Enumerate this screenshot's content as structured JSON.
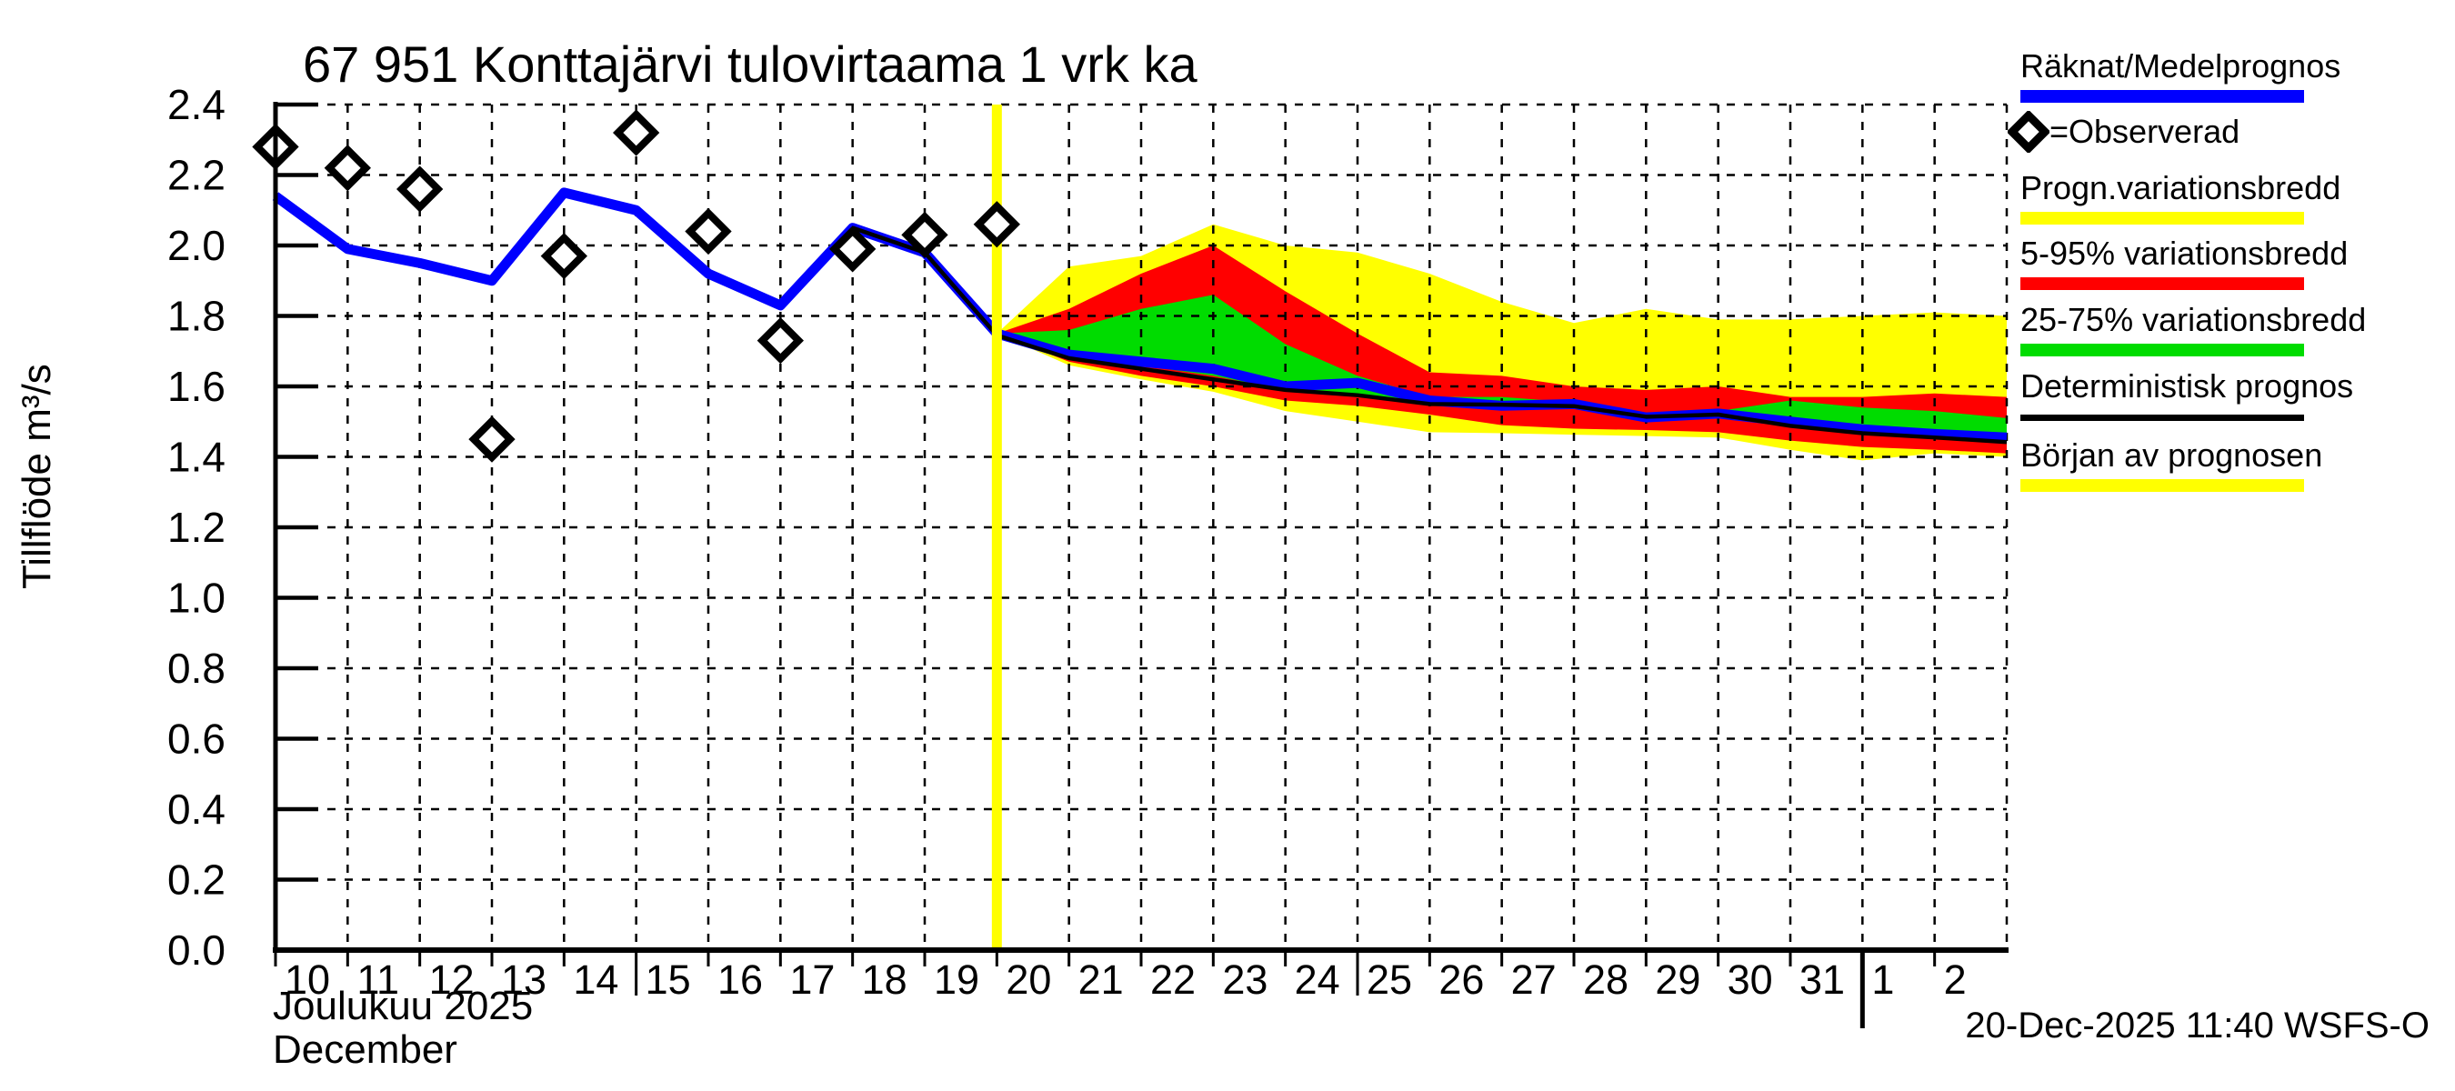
{
  "title": "67 951 Konttajärvi tulovirtaama 1 vrk ka",
  "y_axis": {
    "title": "Tillflöde m³/s",
    "tick_labels": [
      "2.4",
      "2.2",
      "2.0",
      "1.8",
      "1.6",
      "1.4",
      "1.2",
      "1.0",
      "0.8",
      "0.6",
      "0.4",
      "0.2",
      "0.0"
    ],
    "min": 0.0,
    "max": 2.4,
    "step": 0.2
  },
  "x_axis": {
    "month_finnish": "Joulukuu 2025",
    "month_english": "December",
    "labels": [
      {
        "day": 10,
        "text": "10",
        "tick": "normal"
      },
      {
        "day": 11,
        "text": "11",
        "tick": "normal"
      },
      {
        "day": 12,
        "text": "12",
        "tick": "normal"
      },
      {
        "day": 13,
        "text": "13",
        "tick": "normal"
      },
      {
        "day": 14,
        "text": "14",
        "tick": "normal"
      },
      {
        "day": 15,
        "text": "15",
        "tick": "medium"
      },
      {
        "day": 16,
        "text": "16",
        "tick": "normal"
      },
      {
        "day": 17,
        "text": "17",
        "tick": "normal"
      },
      {
        "day": 18,
        "text": "18",
        "tick": "normal"
      },
      {
        "day": 19,
        "text": "19",
        "tick": "normal"
      },
      {
        "day": 20,
        "text": "20",
        "tick": "normal"
      },
      {
        "day": 21,
        "text": "21",
        "tick": "normal"
      },
      {
        "day": 22,
        "text": "22",
        "tick": "normal"
      },
      {
        "day": 23,
        "text": "23",
        "tick": "normal"
      },
      {
        "day": 24,
        "text": "24",
        "tick": "normal"
      },
      {
        "day": 25,
        "text": "25",
        "tick": "medium"
      },
      {
        "day": 26,
        "text": "26",
        "tick": "normal"
      },
      {
        "day": 27,
        "text": "27",
        "tick": "normal"
      },
      {
        "day": 28,
        "text": "28",
        "tick": "normal"
      },
      {
        "day": 29,
        "text": "29",
        "tick": "normal"
      },
      {
        "day": 30,
        "text": "30",
        "tick": "normal"
      },
      {
        "day": 31,
        "text": "31",
        "tick": "normal"
      },
      {
        "day": 32,
        "text": "1",
        "tick": "month"
      },
      {
        "day": 33,
        "text": "2",
        "tick": "normal"
      }
    ]
  },
  "footer": {
    "generated": "20-Dec-2025 11:40 WSFS-O"
  },
  "legend": {
    "items": [
      {
        "label": "Räknat/Medelprognos",
        "swatch": "bar",
        "color": "#0000FF"
      },
      {
        "label": "=Observerad",
        "swatch": "diamond",
        "color": "#000000"
      },
      {
        "label": "Progn.variationsbredd",
        "swatch": "bar",
        "color": "#FFFF00"
      },
      {
        "label": "5-95% variationsbredd",
        "swatch": "bar",
        "color": "#FF0000"
      },
      {
        "label": "25-75% variationsbredd",
        "swatch": "bar",
        "color": "#00DC00"
      },
      {
        "label": "Deterministisk prognos",
        "swatch": "line",
        "color": "#000000"
      },
      {
        "label": "Början av prognosen",
        "swatch": "bar",
        "color": "#FFFF00"
      }
    ]
  },
  "colors": {
    "mean_line": "#0000FF",
    "observed_marker": "#000000",
    "prognosis_range": "#FFFF00",
    "p5_95_range": "#FF0000",
    "p25_75_range": "#00DC00",
    "deterministic_line": "#000000",
    "forecast_start_line": "#FFFF00",
    "grid": "#000000",
    "background": "#FFFFFF"
  },
  "chart_data": {
    "type": "line",
    "title": "67 951 Konttajärvi tulovirtaama 1 vrk ka",
    "ylabel": "Tillflöde m³/s",
    "ylim": [
      0,
      2.4
    ],
    "grid": true,
    "legend_position": "right",
    "x_domain_days": [
      10,
      34
    ],
    "x_note": "day of December 2025; day 32 = 1 Jan 2026, day 33 = 2 Jan 2026",
    "forecast_start_day": 20,
    "observed_points": {
      "days": [
        10,
        11,
        12,
        13,
        14,
        15,
        16,
        17,
        18,
        19,
        20
      ],
      "values": [
        2.28,
        2.22,
        2.16,
        1.45,
        1.97,
        2.32,
        2.04,
        1.73,
        1.99,
        2.03,
        2.06
      ]
    },
    "mean_line": {
      "days": [
        10,
        11,
        12,
        13,
        14,
        15,
        16,
        17,
        18,
        19,
        20,
        21,
        22,
        23,
        24,
        25,
        26,
        27,
        28,
        29,
        30,
        31,
        32,
        33,
        34
      ],
      "values": [
        2.14,
        1.99,
        1.95,
        1.9,
        2.15,
        2.1,
        1.92,
        1.83,
        2.05,
        1.98,
        1.75,
        1.69,
        1.67,
        1.65,
        1.6,
        1.61,
        1.56,
        1.545,
        1.55,
        1.512,
        1.523,
        1.5,
        1.478,
        1.465,
        1.455
      ]
    },
    "deterministic_line": {
      "days": [
        18,
        19,
        20,
        21,
        22,
        23,
        24,
        25,
        26,
        27,
        28,
        29,
        30,
        31,
        32,
        33,
        34
      ],
      "values": [
        2.05,
        1.98,
        1.745,
        1.68,
        1.65,
        1.62,
        1.59,
        1.575,
        1.55,
        1.548,
        1.544,
        1.514,
        1.52,
        1.488,
        1.467,
        1.455,
        1.442
      ]
    },
    "bands": [
      {
        "name": "prognosis_range",
        "color_key": "prognosis_range",
        "days": [
          20,
          21,
          22,
          23,
          24,
          25,
          26,
          27,
          28,
          29,
          30,
          31,
          32,
          33,
          34
        ],
        "upper": [
          1.75,
          1.94,
          1.97,
          2.06,
          2.0,
          1.98,
          1.92,
          1.84,
          1.78,
          1.82,
          1.79,
          1.79,
          1.8,
          1.81,
          1.8
        ],
        "lower": [
          1.75,
          1.66,
          1.62,
          1.585,
          1.53,
          1.5,
          1.47,
          1.467,
          1.463,
          1.459,
          1.455,
          1.42,
          1.39,
          1.41,
          1.4
        ]
      },
      {
        "name": "p5_95_range",
        "color_key": "p5_95_range",
        "days": [
          20,
          21,
          22,
          23,
          24,
          25,
          26,
          27,
          28,
          29,
          30,
          31,
          32,
          33,
          34
        ],
        "upper": [
          1.75,
          1.82,
          1.92,
          2.0,
          1.87,
          1.75,
          1.64,
          1.63,
          1.6,
          1.59,
          1.6,
          1.57,
          1.57,
          1.58,
          1.57
        ],
        "lower": [
          1.75,
          1.67,
          1.63,
          1.6,
          1.56,
          1.545,
          1.52,
          1.49,
          1.48,
          1.476,
          1.47,
          1.446,
          1.428,
          1.42,
          1.41
        ]
      },
      {
        "name": "p25_75_range",
        "color_key": "p25_75_range",
        "days": [
          20,
          21,
          22,
          23,
          24,
          25,
          26,
          27,
          28,
          29,
          30,
          31,
          32,
          33,
          34
        ],
        "upper": [
          1.75,
          1.76,
          1.82,
          1.86,
          1.72,
          1.63,
          1.57,
          1.57,
          1.555,
          1.525,
          1.53,
          1.56,
          1.54,
          1.53,
          1.51
        ],
        "lower": [
          1.75,
          1.7,
          1.66,
          1.63,
          1.59,
          1.57,
          1.55,
          1.55,
          1.54,
          1.51,
          1.52,
          1.5,
          1.48,
          1.47,
          1.46
        ]
      }
    ]
  }
}
